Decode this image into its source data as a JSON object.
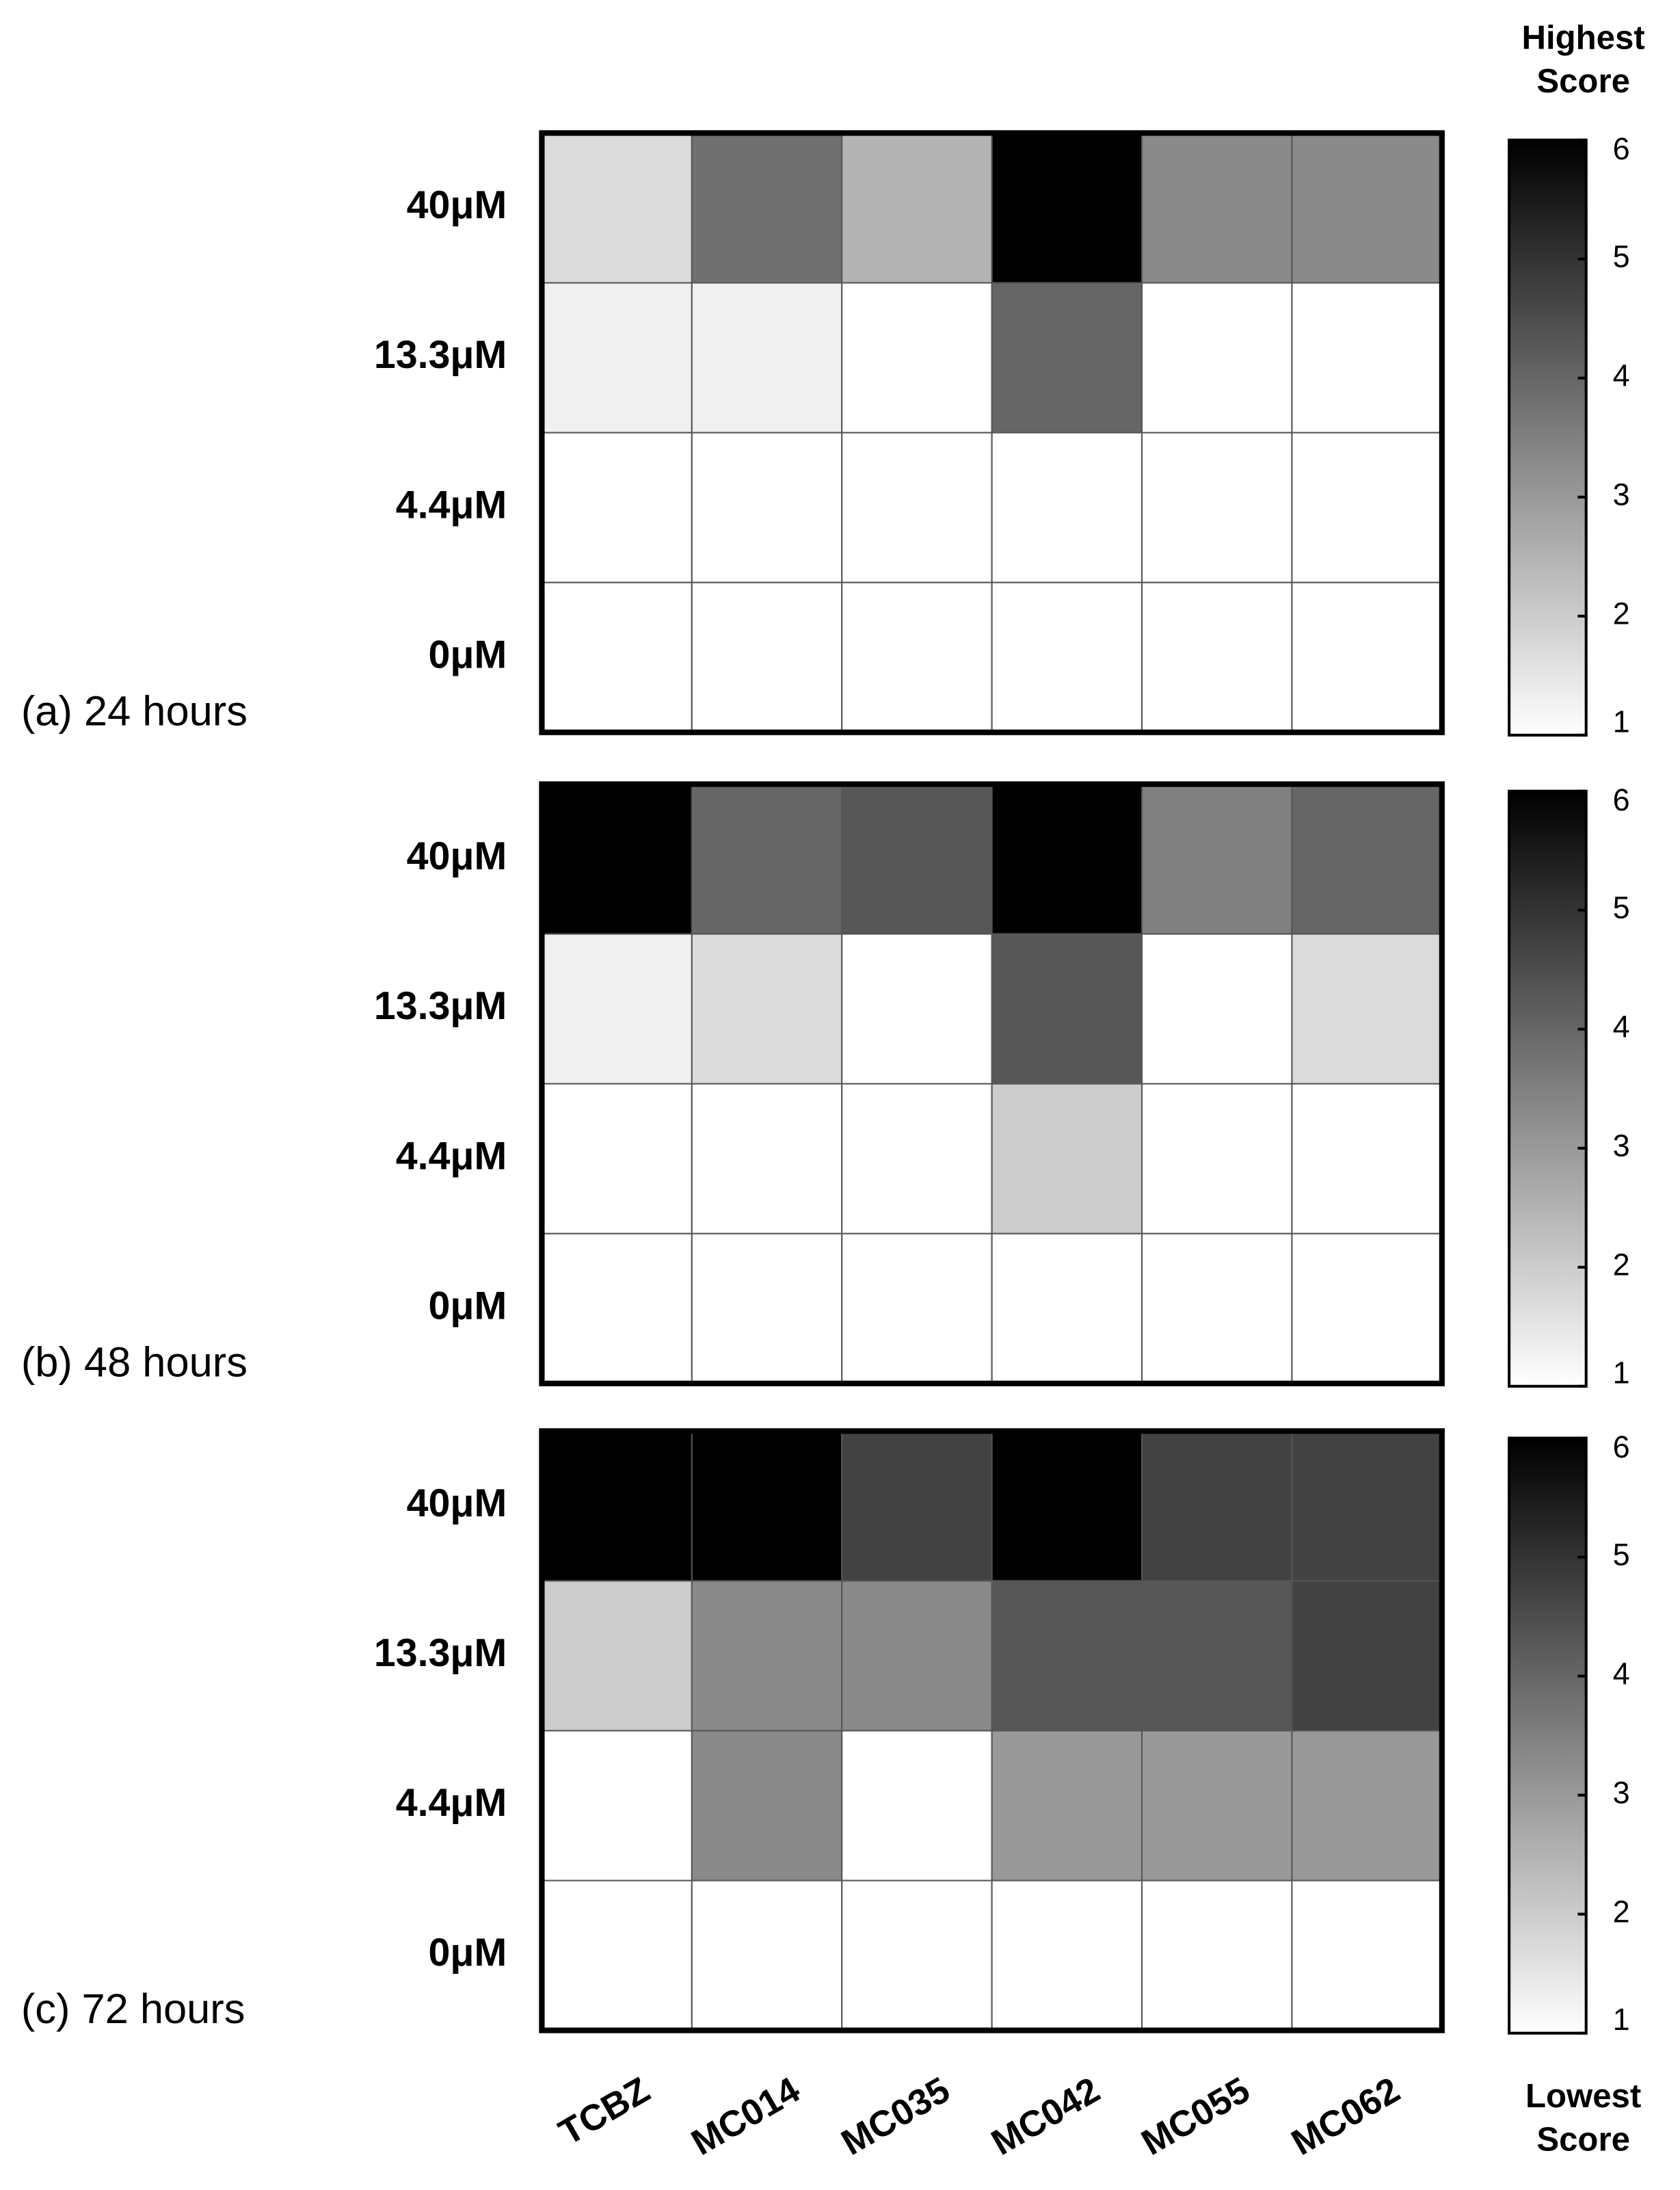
{
  "chart_data": [
    {
      "type": "heatmap",
      "title": "(a) 24 hours",
      "rows": [
        "40μM",
        "13.3μM",
        "4.4μM",
        "0μM"
      ],
      "values": [
        [
          1.7,
          3.8,
          2.5,
          6,
          3.3,
          3.3
        ],
        [
          1.3,
          1.3,
          1,
          4,
          1,
          1
        ],
        [
          1,
          1,
          1,
          1,
          1,
          1
        ],
        [
          1,
          1,
          1,
          1,
          1,
          1
        ]
      ],
      "zlim": [
        1,
        6
      ],
      "zticks": [
        1,
        2,
        3,
        4,
        5,
        6
      ],
      "colormap": [
        "#ffffff",
        "#000000"
      ],
      "colorbar_label_top": "Highest Score"
    },
    {
      "type": "heatmap",
      "title": "(b) 48 hours",
      "rows": [
        "40μM",
        "13.3μM",
        "4.4μM",
        "0μM"
      ],
      "values": [
        [
          6,
          4,
          4.3,
          6,
          3.5,
          4
        ],
        [
          1.3,
          1.7,
          1,
          4.3,
          1,
          1.7
        ],
        [
          1,
          1,
          1,
          2,
          1,
          1
        ],
        [
          1,
          1,
          1,
          1,
          1,
          1
        ]
      ],
      "zlim": [
        1,
        6
      ],
      "zticks": [
        1,
        2,
        3,
        4,
        5,
        6
      ],
      "colormap": [
        "#ffffff",
        "#000000"
      ]
    },
    {
      "type": "heatmap",
      "title": "(c) 72 hours",
      "rows": [
        "40μM",
        "13.3μM",
        "4.4μM",
        "0μM"
      ],
      "categories": [
        "TCBZ",
        "MC014",
        "MC035",
        "MC042",
        "MC055",
        "MC062"
      ],
      "values": [
        [
          6,
          6,
          4.7,
          6,
          4.7,
          4.7
        ],
        [
          2,
          3.3,
          3.3,
          4.3,
          4.3,
          4.7
        ],
        [
          1,
          3.3,
          1,
          3,
          3,
          3
        ],
        [
          1,
          1,
          1,
          1,
          1,
          1
        ]
      ],
      "zlim": [
        1,
        6
      ],
      "zticks": [
        1,
        2,
        3,
        4,
        5,
        6
      ],
      "colormap": [
        "#ffffff",
        "#000000"
      ],
      "colorbar_label_bottom": "Lowest Score"
    }
  ]
}
